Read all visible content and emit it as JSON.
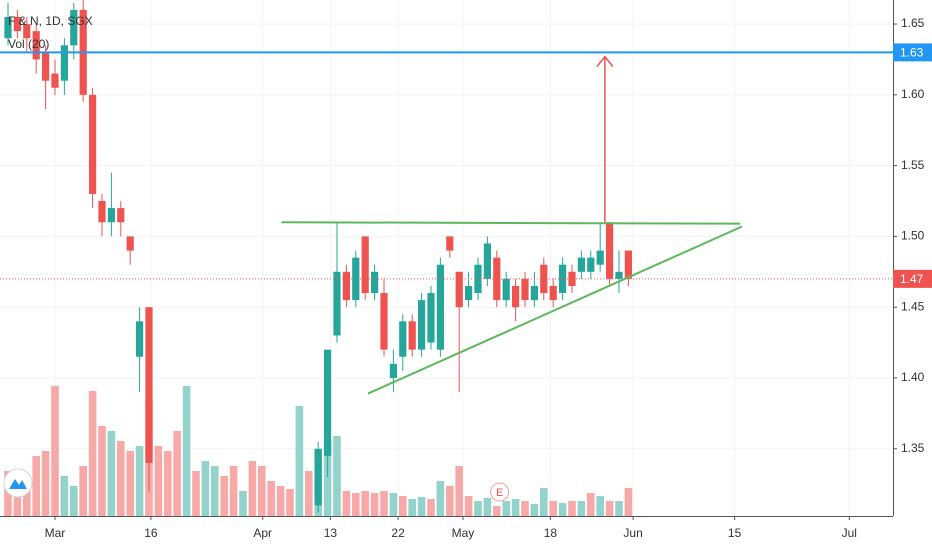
{
  "chart_data": {
    "type": "candlestick",
    "title": "F & N, 1D, SGX",
    "subtitle": "Vol (20)",
    "up_color": "#26a69a",
    "down_color": "#ef5350",
    "grid": true,
    "xlim": [
      -0.85,
      94.15
    ],
    "ylim": [
      1.3025,
      1.667
    ],
    "xticks": [
      {
        "value": 5,
        "label": "Mar"
      },
      {
        "value": 15.2,
        "label": "16"
      },
      {
        "value": 27.1,
        "label": "Apr"
      },
      {
        "value": 34.3,
        "label": "13"
      },
      {
        "value": 41.5,
        "label": "22"
      },
      {
        "value": 48.4,
        "label": "May"
      },
      {
        "value": 57.7,
        "label": "18"
      },
      {
        "value": 66.5,
        "label": "Jun"
      },
      {
        "value": 77.3,
        "label": "15"
      },
      {
        "value": 89.5,
        "label": "Jul"
      }
    ],
    "yticks": [
      1.35,
      {
        "value": 1.4,
        "label": "1.40"
      },
      1.45,
      {
        "value": 1.5,
        "label": "1.50"
      },
      1.55,
      {
        "value": 1.6,
        "label": "1.60"
      },
      1.65
    ],
    "candles": {
      "x": [
        0,
        1,
        2,
        3,
        4,
        5,
        6,
        7,
        8,
        9,
        10,
        11,
        12,
        13,
        14,
        15,
        33,
        34,
        35,
        36,
        37,
        38,
        39,
        40,
        41,
        42,
        43,
        44,
        45,
        46,
        47,
        48,
        49,
        50,
        51,
        52,
        53,
        54,
        55,
        56,
        57,
        58,
        59,
        60,
        61,
        62,
        63,
        64,
        65,
        66
      ],
      "open": [
        1.64,
        1.655,
        1.65,
        1.645,
        1.63,
        1.615,
        1.61,
        1.635,
        1.66,
        1.6,
        1.525,
        1.51,
        1.52,
        1.5,
        1.415,
        1.45,
        1.31,
        1.345,
        1.43,
        1.475,
        1.455,
        1.5,
        1.46,
        1.46,
        1.4,
        1.415,
        1.44,
        1.42,
        1.425,
        1.42,
        1.5,
        1.475,
        1.455,
        1.46,
        1.47,
        1.485,
        1.455,
        1.465,
        1.47,
        1.455,
        1.48,
        1.465,
        1.46,
        1.475,
        1.475,
        1.475,
        1.48,
        1.51,
        1.47,
        1.49
      ],
      "high": [
        1.665,
        1.66,
        1.655,
        1.65,
        1.635,
        1.625,
        1.64,
        1.665,
        1.667,
        1.605,
        1.53,
        1.545,
        1.525,
        1.5,
        1.45,
        1.45,
        1.355,
        1.42,
        1.51,
        1.48,
        1.49,
        1.5,
        1.48,
        1.47,
        1.42,
        1.445,
        1.445,
        1.46,
        1.465,
        1.485,
        1.5,
        1.475,
        1.475,
        1.485,
        1.5,
        1.49,
        1.475,
        1.47,
        1.475,
        1.475,
        1.485,
        1.47,
        1.485,
        1.48,
        1.49,
        1.49,
        1.51,
        1.51,
        1.49,
        1.49
      ],
      "low": [
        1.635,
        1.64,
        1.63,
        1.615,
        1.59,
        1.6,
        1.6,
        1.625,
        1.595,
        1.52,
        1.5,
        1.5,
        1.5,
        1.48,
        1.39,
        1.32,
        1.305,
        1.33,
        1.425,
        1.45,
        1.45,
        1.455,
        1.455,
        1.415,
        1.39,
        1.405,
        1.415,
        1.415,
        1.42,
        1.415,
        1.485,
        1.39,
        1.45,
        1.455,
        1.465,
        1.45,
        1.45,
        1.44,
        1.45,
        1.45,
        1.455,
        1.45,
        1.455,
        1.46,
        1.47,
        1.47,
        1.475,
        1.465,
        1.46,
        1.465
      ],
      "close": [
        1.655,
        1.645,
        1.64,
        1.625,
        1.61,
        1.605,
        1.635,
        1.66,
        1.6,
        1.53,
        1.51,
        1.52,
        1.51,
        1.49,
        1.44,
        1.34,
        1.35,
        1.42,
        1.475,
        1.455,
        1.485,
        1.46,
        1.475,
        1.42,
        1.41,
        1.44,
        1.42,
        1.455,
        1.46,
        1.48,
        1.49,
        1.45,
        1.465,
        1.48,
        1.495,
        1.455,
        1.47,
        1.45,
        1.455,
        1.465,
        1.46,
        1.455,
        1.48,
        1.465,
        1.485,
        1.485,
        1.49,
        1.47,
        1.475,
        1.47
      ]
    },
    "volume": {
      "vlim": [
        0,
        516
      ],
      "x": [
        0,
        1,
        2,
        3,
        4,
        5,
        6,
        7,
        8,
        9,
        10,
        11,
        12,
        13,
        14,
        15,
        16,
        17,
        18,
        19,
        20,
        21,
        22,
        23,
        24,
        25,
        26,
        27,
        28,
        29,
        30,
        31,
        32,
        33,
        34,
        35,
        36,
        37,
        38,
        39,
        40,
        41,
        42,
        43,
        44,
        45,
        46,
        47,
        48,
        49,
        50,
        51,
        52,
        53,
        54,
        55,
        56,
        57,
        58,
        59,
        60,
        61,
        62,
        63,
        64,
        65,
        66
      ],
      "values": [
        45,
        45,
        35,
        60,
        65,
        130,
        40,
        30,
        50,
        125,
        90,
        85,
        75,
        65,
        70,
        115,
        70,
        65,
        85,
        130,
        45,
        55,
        50,
        40,
        50,
        25,
        55,
        50,
        35,
        30,
        27,
        110,
        45,
        67,
        75,
        80,
        25,
        23,
        25,
        23,
        25,
        23,
        20,
        17,
        19,
        17,
        35,
        30,
        50,
        20,
        15,
        18,
        10,
        15,
        17,
        15,
        12,
        28,
        15,
        13,
        15,
        15,
        23,
        20,
        15,
        15,
        28
      ],
      "colors": [
        "#f7a9a7",
        "#f7a9a7",
        "#f7a9a7",
        "#f7a9a7",
        "#f7a9a7",
        "#f7a9a7",
        "#93d3cb",
        "#93d3cb",
        "#f7a9a7",
        "#f7a9a7",
        "#f7a9a7",
        "#93d3cb",
        "#f7a9a7",
        "#f7a9a7",
        "#93d3cb",
        "#f7a9a7",
        "#f7a9a7",
        "#f7a9a7",
        "#f7a9a7",
        "#93d3cb",
        "#f7a9a7",
        "#93d3cb",
        "#93d3cb",
        "#f7a9a7",
        "#f7a9a7",
        "#93d3cb",
        "#f7a9a7",
        "#f7a9a7",
        "#f7a9a7",
        "#f7a9a7",
        "#f7a9a7",
        "#93d3cb",
        "#f7a9a7",
        "#93d3cb",
        "#93d3cb",
        "#93d3cb",
        "#f7a9a7",
        "#f7a9a7",
        "#f7a9a7",
        "#f7a9a7",
        "#f7a9a7",
        "#93d3cb",
        "#f7a9a7",
        "#93d3cb",
        "#93d3cb",
        "#f7a9a7",
        "#93d3cb",
        "#f7a9a7",
        "#f7a9a7",
        "#f7a9a7",
        "#93d3cb",
        "#93d3cb",
        "#f7a9a7",
        "#93d3cb",
        "#93d3cb",
        "#f7a9a7",
        "#93d3cb",
        "#93d3cb",
        "#f7a9a7",
        "#93d3cb",
        "#f7a9a7",
        "#93d3cb",
        "#f7a9a7",
        "#93d3cb",
        "#f7a9a7",
        "#93d3cb",
        "#f7a9a7"
      ]
    },
    "horizontal_line": {
      "value": 1.63,
      "color": "#2196f3"
    },
    "last_price": {
      "value": 1.47,
      "color": "#ef5350"
    },
    "trendlines": [
      {
        "color": "#5cb85c",
        "x": [
          29.1,
          77.9
        ],
        "y": [
          1.51,
          1.509
        ]
      },
      {
        "color": "#5cb85c",
        "x": [
          38.3,
          78.1
        ],
        "y": [
          1.389,
          1.507
        ]
      }
    ],
    "arrow": {
      "color": "#ef5350",
      "x": 63.5,
      "y": [
        1.51,
        1.627
      ]
    },
    "earnings_marker": {
      "x": 52.3,
      "label": "E"
    }
  }
}
